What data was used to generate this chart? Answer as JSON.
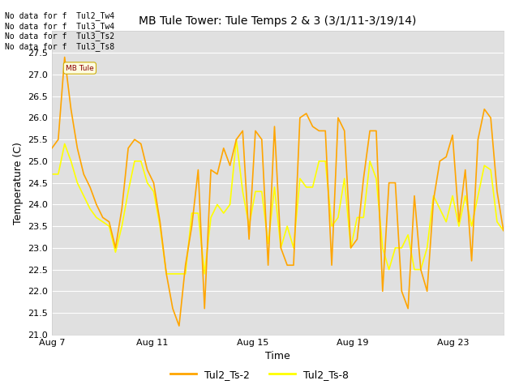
{
  "title": "MB Tule Tower: Tule Temps 2 & 3 (3/1/11-3/19/14)",
  "xlabel": "Time",
  "ylabel": "Temperature (C)",
  "ylim": [
    21.0,
    28.0
  ],
  "yticks": [
    21.0,
    21.5,
    22.0,
    22.5,
    23.0,
    23.5,
    24.0,
    24.5,
    25.0,
    25.5,
    26.0,
    26.5,
    27.0,
    27.5
  ],
  "series1_color": "#FFA500",
  "series2_color": "#FFFF00",
  "series1_label": "Tul2_Ts-2",
  "series2_label": "Tul2_Ts-8",
  "no_data_lines": [
    "No data for f  Tul2_Tw4",
    "No data for f  Tul3_Tw4",
    "No data for f  Tul3_Ts2",
    "No data for f  Tul3_Ts8"
  ],
  "xtick_labels": [
    "Aug 7",
    "Aug 11",
    "Aug 15",
    "Aug 19",
    "Aug 23"
  ],
  "xtick_positions": [
    0,
    4,
    8,
    12,
    16
  ],
  "tooltip_text": "MB Tule",
  "xlim": [
    0,
    18
  ],
  "grid_color": "#ffffff",
  "plot_bg": "#e0e0e0",
  "fig_bg": "#ffffff",
  "linewidth": 1.2,
  "s1": [
    25.3,
    25.5,
    27.4,
    26.2,
    25.3,
    24.7,
    24.4,
    24.0,
    23.7,
    23.6,
    23.0,
    23.9,
    25.3,
    25.5,
    25.4,
    24.8,
    24.5,
    23.6,
    22.4,
    21.6,
    21.2,
    22.6,
    23.5,
    24.8,
    21.6,
    24.8,
    24.7,
    25.3,
    24.9,
    25.5,
    25.7,
    23.2,
    25.7,
    25.5,
    22.6,
    25.8,
    23.0,
    22.6,
    22.6,
    26.0,
    26.1,
    25.8,
    25.7,
    25.7,
    22.6,
    26.0,
    25.7,
    23.0,
    23.2,
    24.6,
    25.7,
    25.7,
    22.0,
    24.5,
    24.5,
    22.0,
    21.6,
    24.2,
    22.5,
    22.0,
    24.1,
    25.0,
    25.1,
    25.6,
    23.6,
    24.8,
    22.7,
    25.5,
    26.2,
    26.0,
    24.3,
    23.4
  ],
  "s2": [
    24.7,
    24.7,
    25.4,
    25.0,
    24.5,
    24.2,
    23.9,
    23.7,
    23.6,
    23.5,
    22.9,
    23.5,
    24.3,
    25.0,
    25.0,
    24.5,
    24.3,
    23.5,
    22.4,
    22.4,
    22.4,
    22.4,
    23.8,
    23.8,
    22.4,
    23.7,
    24.0,
    23.8,
    24.0,
    25.5,
    24.3,
    23.5,
    24.3,
    24.3,
    23.1,
    24.4,
    23.0,
    23.5,
    23.0,
    24.6,
    24.4,
    24.4,
    25.0,
    25.0,
    23.5,
    23.7,
    24.6,
    23.0,
    23.7,
    23.7,
    25.0,
    24.6,
    23.0,
    22.5,
    23.0,
    23.0,
    23.3,
    22.5,
    22.5,
    23.0,
    24.2,
    23.9,
    23.6,
    24.2,
    23.5,
    24.2,
    23.5,
    24.2,
    24.9,
    24.8,
    23.6,
    23.4
  ]
}
